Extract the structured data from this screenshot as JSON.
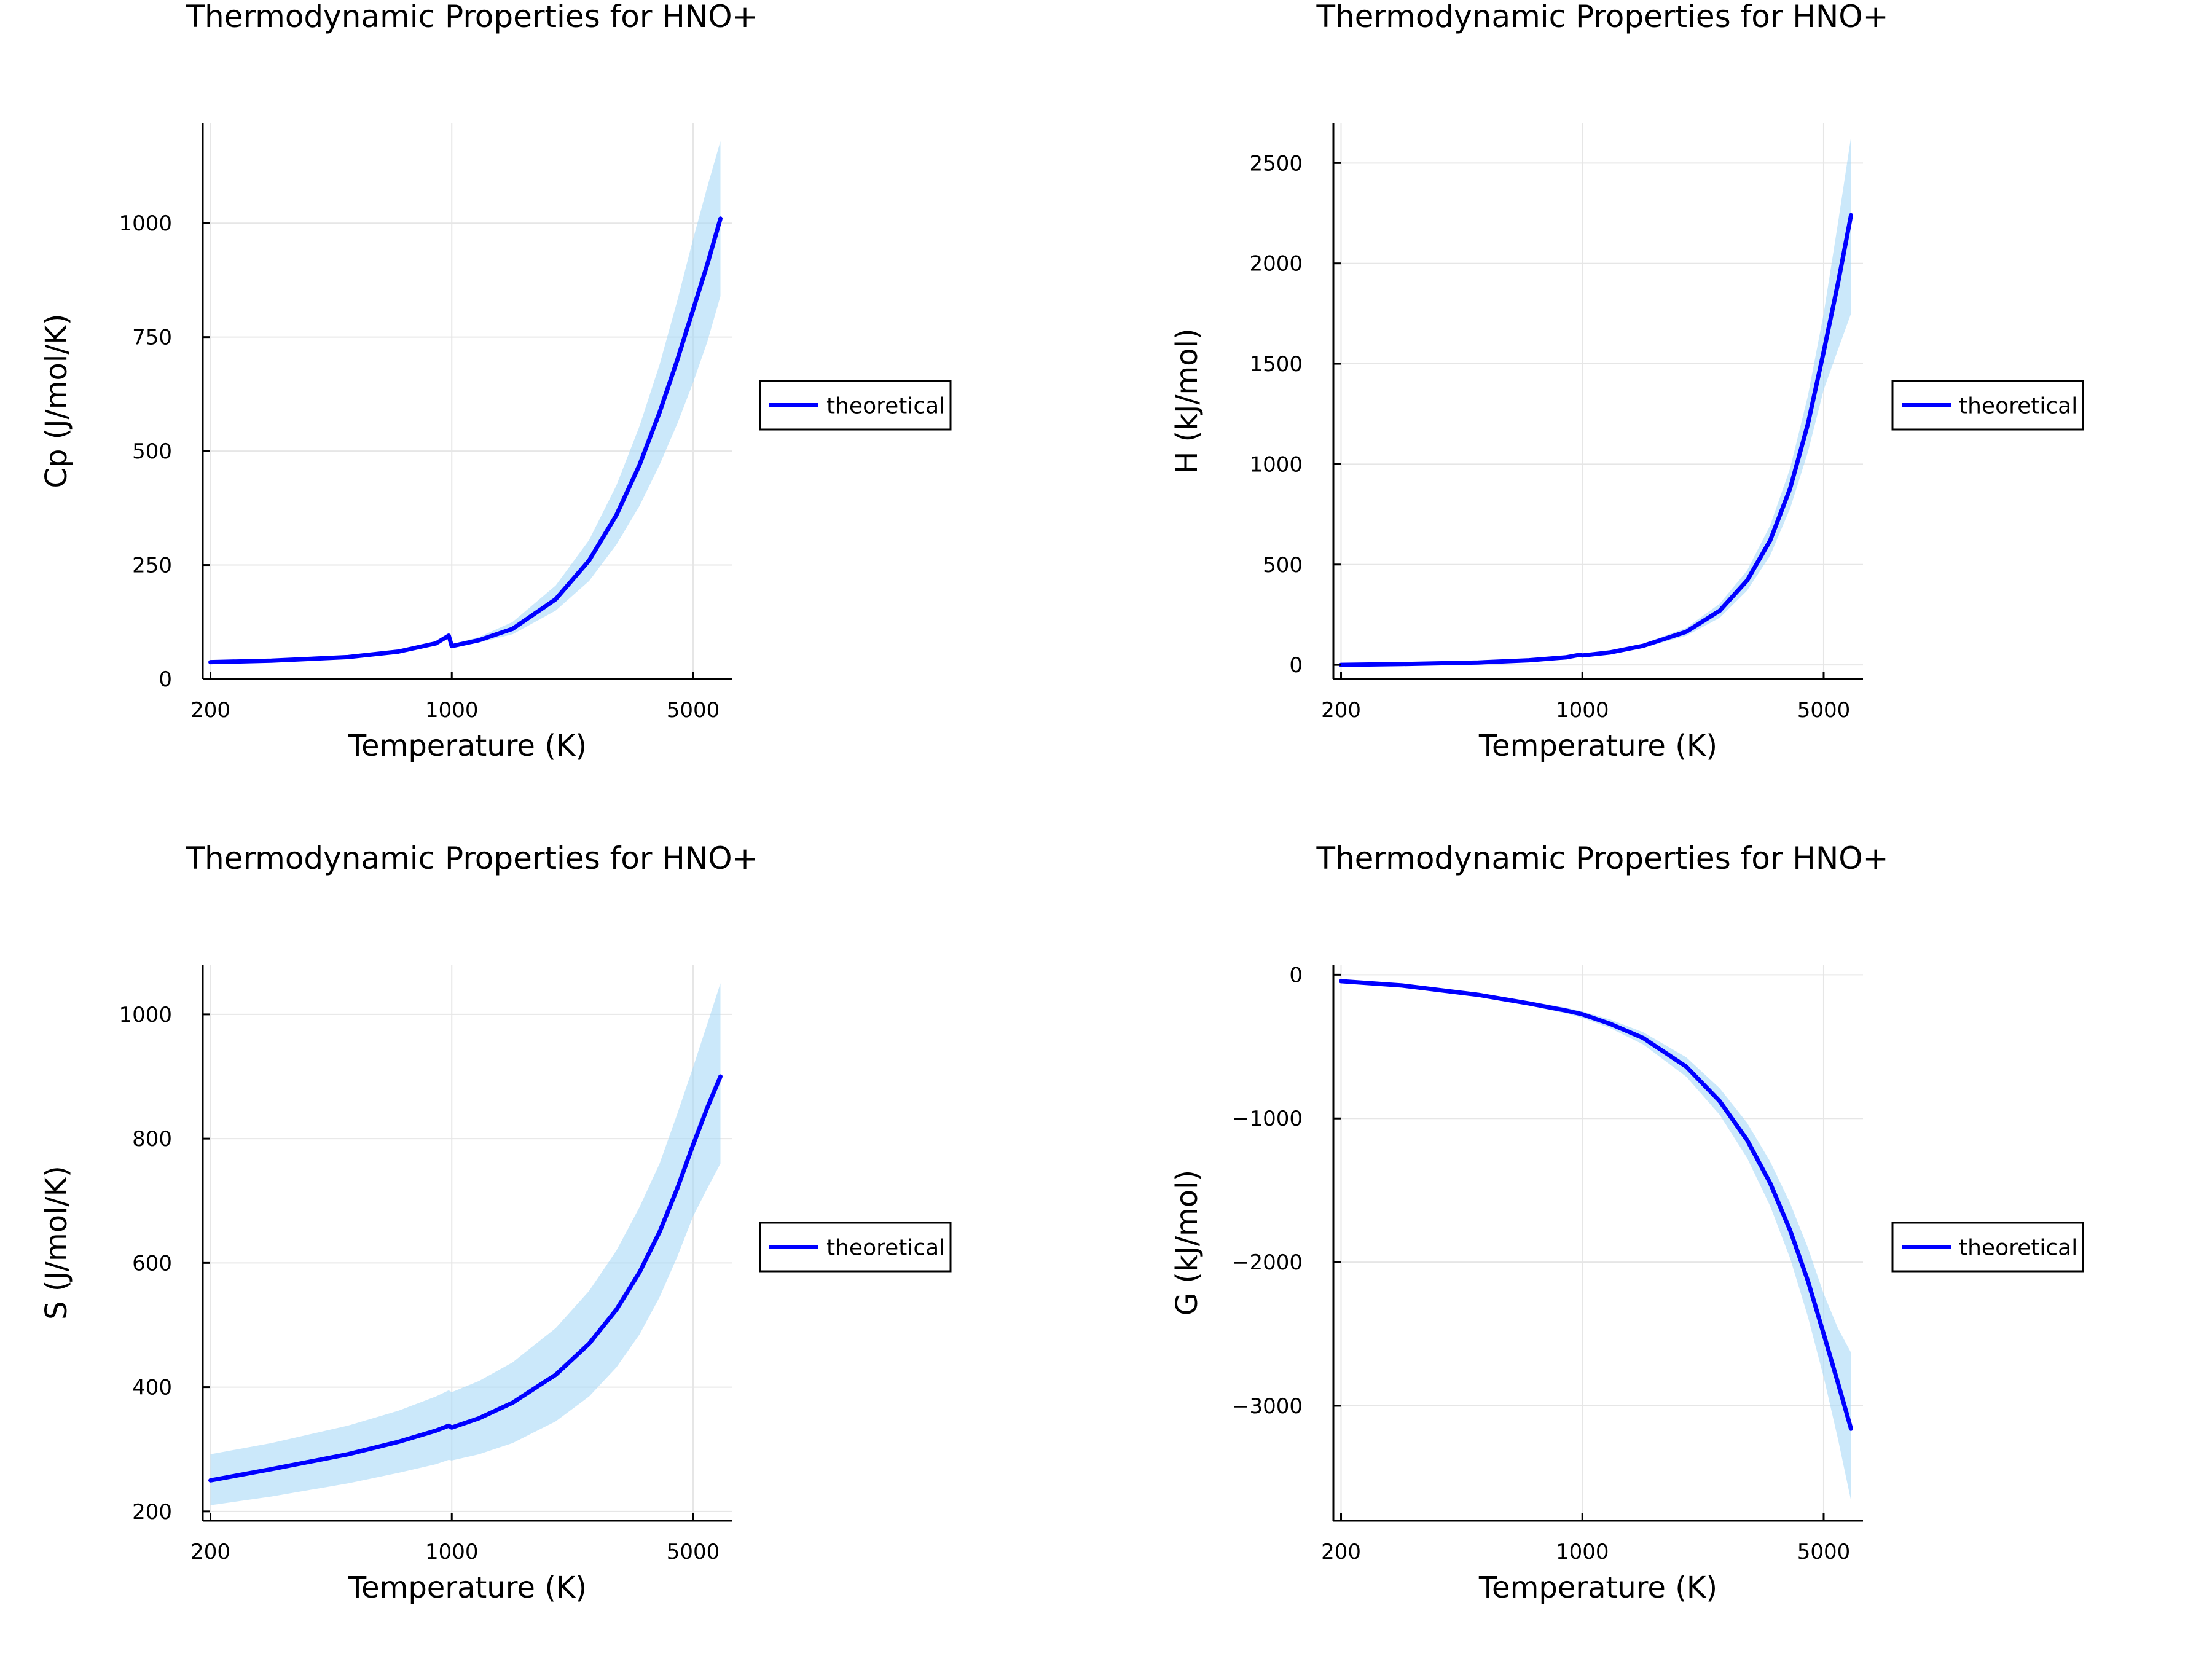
{
  "figure": {
    "background": "#ffffff",
    "colors": {
      "line": "#0000ff",
      "band": "#a8d8f6",
      "grid": "#e6e6e6",
      "axis": "#000000",
      "legend_border": "#000000"
    }
  },
  "chart_data": [
    {
      "type": "line",
      "title": "Thermodynamic Properties for HNO+",
      "xlabel": "Temperature (K)",
      "ylabel": "Cp (J/mol/K)",
      "x_scale": "log",
      "xlim": [
        190,
        6500
      ],
      "ylim": [
        0,
        1220
      ],
      "xticks": [
        200,
        1000,
        5000
      ],
      "xtick_labels": [
        "200",
        "1000",
        "5000"
      ],
      "yticks": [
        0,
        250,
        500,
        750,
        1000
      ],
      "ytick_labels": [
        "0",
        "250",
        "500",
        "750",
        "1000"
      ],
      "grid": true,
      "legend": {
        "position": "outside-right",
        "entries": [
          "theoretical"
        ]
      },
      "series": [
        {
          "name": "theoretical",
          "x": [
            200,
            300,
            500,
            700,
            900,
            980,
            1000,
            1200,
            1500,
            2000,
            2500,
            3000,
            3500,
            4000,
            4500,
            5000,
            5500,
            6000
          ],
          "y": [
            37,
            40,
            48,
            60,
            78,
            95,
            72,
            85,
            110,
            175,
            260,
            360,
            470,
            585,
            700,
            810,
            910,
            1010
          ],
          "band_lower": [
            35,
            38,
            46,
            57,
            75,
            91,
            69,
            80,
            98,
            150,
            215,
            295,
            380,
            470,
            560,
            650,
            740,
            840
          ],
          "band_upper": [
            39,
            42,
            50,
            63,
            81,
            99,
            76,
            92,
            125,
            205,
            305,
            425,
            555,
            690,
            830,
            965,
            1080,
            1180
          ]
        }
      ]
    },
    {
      "type": "line",
      "title": "Thermodynamic Properties for HNO+",
      "xlabel": "Temperature (K)",
      "ylabel": "H (kJ/mol)",
      "x_scale": "log",
      "xlim": [
        190,
        6500
      ],
      "ylim": [
        -70,
        2700
      ],
      "xticks": [
        200,
        1000,
        5000
      ],
      "xtick_labels": [
        "200",
        "1000",
        "5000"
      ],
      "yticks": [
        0,
        500,
        1000,
        1500,
        2000,
        2500
      ],
      "ytick_labels": [
        "0",
        "500",
        "1000",
        "1500",
        "2000",
        "2500"
      ],
      "grid": true,
      "legend": {
        "position": "outside-right",
        "entries": [
          "theoretical"
        ]
      },
      "series": [
        {
          "name": "theoretical",
          "x": [
            200,
            300,
            500,
            700,
            900,
            980,
            1000,
            1200,
            1500,
            2000,
            2500,
            3000,
            3500,
            4000,
            4500,
            5000,
            5500,
            6000
          ],
          "y": [
            0,
            4,
            12,
            23,
            38,
            50,
            47,
            62,
            95,
            165,
            270,
            420,
            620,
            880,
            1200,
            1560,
            1900,
            2240
          ],
          "band_lower": [
            0,
            3,
            11,
            21,
            35,
            46,
            43,
            55,
            85,
            145,
            235,
            370,
            545,
            780,
            1060,
            1370,
            1570,
            1750
          ],
          "band_upper": [
            1,
            5,
            13,
            25,
            41,
            54,
            51,
            69,
            105,
            185,
            305,
            470,
            695,
            980,
            1340,
            1750,
            2200,
            2630
          ]
        }
      ]
    },
    {
      "type": "line",
      "title": "Thermodynamic Properties for HNO+",
      "xlabel": "Temperature (K)",
      "ylabel": "S (J/mol/K)",
      "x_scale": "log",
      "xlim": [
        190,
        6500
      ],
      "ylim": [
        185,
        1080
      ],
      "xticks": [
        200,
        1000,
        5000
      ],
      "xtick_labels": [
        "200",
        "1000",
        "5000"
      ],
      "yticks": [
        200,
        400,
        600,
        800,
        1000
      ],
      "ytick_labels": [
        "200",
        "400",
        "600",
        "800",
        "1000"
      ],
      "grid": true,
      "legend": {
        "position": "outside-right",
        "entries": [
          "theoretical"
        ]
      },
      "series": [
        {
          "name": "theoretical",
          "x": [
            200,
            300,
            500,
            700,
            900,
            980,
            1000,
            1200,
            1500,
            2000,
            2500,
            3000,
            3500,
            4000,
            4500,
            5000,
            5500,
            6000
          ],
          "y": [
            250,
            268,
            292,
            312,
            330,
            338,
            335,
            350,
            375,
            420,
            470,
            525,
            585,
            650,
            720,
            790,
            850,
            900
          ],
          "band_lower": [
            210,
            224,
            245,
            262,
            276,
            283,
            282,
            292,
            310,
            345,
            385,
            432,
            485,
            545,
            610,
            675,
            720,
            760
          ],
          "band_upper": [
            292,
            310,
            338,
            362,
            385,
            395,
            392,
            410,
            440,
            495,
            555,
            620,
            690,
            760,
            840,
            915,
            985,
            1050
          ]
        }
      ]
    },
    {
      "type": "line",
      "title": "Thermodynamic Properties for HNO+",
      "xlabel": "Temperature (K)",
      "ylabel": "G (kJ/mol)",
      "x_scale": "log",
      "xlim": [
        190,
        6500
      ],
      "ylim": [
        -3800,
        70
      ],
      "xticks": [
        200,
        1000,
        5000
      ],
      "xtick_labels": [
        "200",
        "1000",
        "5000"
      ],
      "yticks": [
        0,
        -1000,
        -2000,
        -3000
      ],
      "ytick_labels": [
        "0",
        "−1000",
        "−2000",
        "−3000"
      ],
      "grid": true,
      "legend": {
        "position": "outside-right",
        "entries": [
          "theoretical"
        ]
      },
      "series": [
        {
          "name": "theoretical",
          "x": [
            200,
            300,
            500,
            700,
            900,
            1000,
            1200,
            1500,
            2000,
            2500,
            3000,
            3500,
            4000,
            4500,
            5000,
            5500,
            6000
          ],
          "y": [
            -45,
            -75,
            -140,
            -200,
            -250,
            -275,
            -340,
            -440,
            -640,
            -880,
            -1150,
            -1450,
            -1780,
            -2130,
            -2500,
            -2840,
            -3160
          ],
          "band_lower": [
            -48,
            -80,
            -150,
            -215,
            -270,
            -300,
            -370,
            -485,
            -710,
            -975,
            -1275,
            -1610,
            -1975,
            -2380,
            -2800,
            -3230,
            -3660
          ],
          "band_upper": [
            -42,
            -70,
            -130,
            -185,
            -230,
            -255,
            -310,
            -400,
            -575,
            -790,
            -1030,
            -1300,
            -1590,
            -1900,
            -2220,
            -2460,
            -2630
          ]
        }
      ]
    }
  ]
}
